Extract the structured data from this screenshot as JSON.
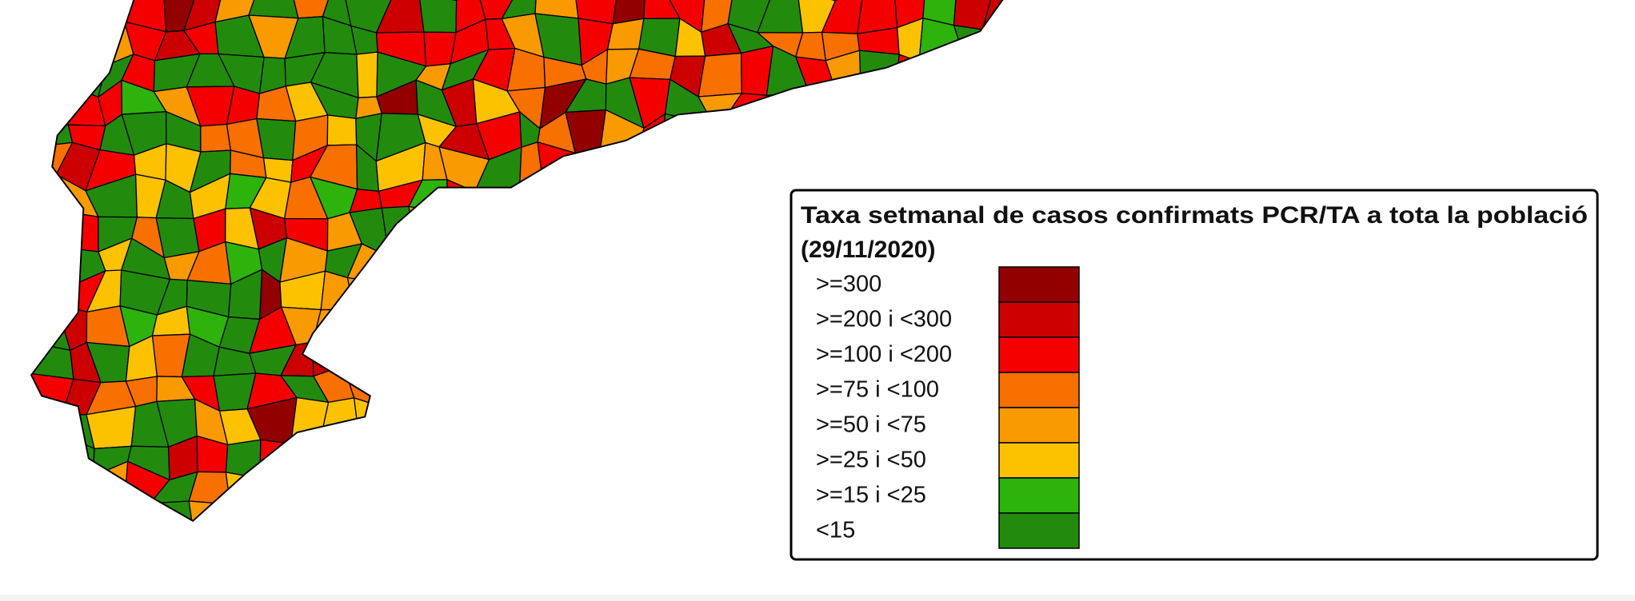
{
  "legend": {
    "title_line1": "Taxa setmanal de casos confirmats PCR/TA a tota la població",
    "title_line2": "(29/11/2020)",
    "items": [
      {
        "label": ">=300",
        "color": "#930000"
      },
      {
        "label": ">=200 i <300",
        "color": "#cc0000"
      },
      {
        "label": ">=100 i <200",
        "color": "#f50000"
      },
      {
        "label": ">=75 i <100",
        "color": "#f77000"
      },
      {
        "label": ">=50 i <75",
        "color": "#f99a00"
      },
      {
        "label": ">=25 i <50",
        "color": "#fcc200"
      },
      {
        "label": ">=15 i <25",
        "color": "#2db30b"
      },
      {
        "label": "<15",
        "color": "#228b0e"
      }
    ]
  }
}
